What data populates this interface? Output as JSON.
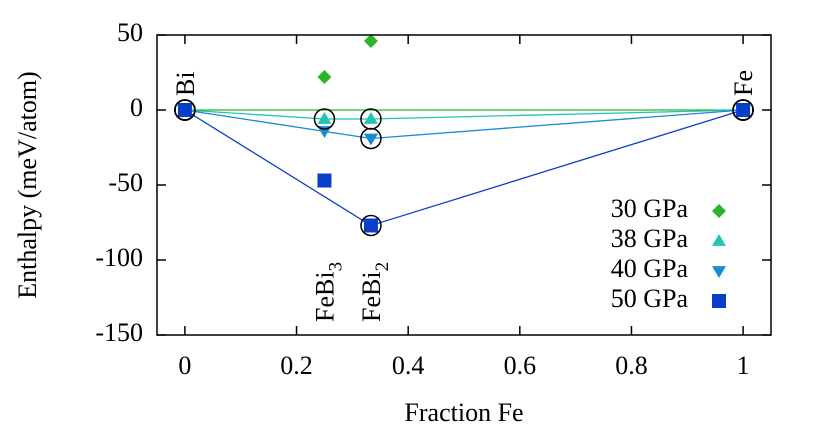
{
  "chart_data": {
    "type": "scatter",
    "xlabel": "Fraction Fe",
    "ylabel": "Enthalpy (meV/atom)",
    "xlim": [
      -0.05,
      1.05
    ],
    "ylim": [
      -150,
      50
    ],
    "xticks": [
      0,
      0.2,
      0.4,
      0.6,
      0.8,
      1
    ],
    "yticks": [
      -150,
      -100,
      -50,
      0,
      50
    ],
    "legend": "lower right",
    "series": [
      {
        "name": "30 GPa",
        "color": "#2cb52c",
        "marker": "diamond",
        "x": [
          0,
          0.25,
          0.3333,
          1
        ],
        "values": [
          0,
          22,
          46,
          0
        ],
        "hull": [
          0,
          3
        ]
      },
      {
        "name": "38 GPa",
        "color": "#22c4b4",
        "marker": "triangle-up",
        "x": [
          0,
          0.25,
          0.3333,
          1
        ],
        "values": [
          0,
          -6,
          -6,
          0
        ],
        "hull": [
          0,
          1,
          2,
          3
        ]
      },
      {
        "name": "40 GPa",
        "color": "#1a8ad4",
        "marker": "triangle-down",
        "x": [
          0,
          0.25,
          0.3333,
          1
        ],
        "values": [
          0,
          -14,
          -19,
          0
        ],
        "hull": [
          0,
          2,
          3
        ]
      },
      {
        "name": "50 GPa",
        "color": "#0b3ec8",
        "marker": "square",
        "x": [
          0,
          0.25,
          0.3333,
          1
        ],
        "values": [
          0,
          -47,
          -77,
          0
        ],
        "hull": [
          0,
          2,
          3
        ]
      }
    ],
    "annotations": [
      {
        "text": "Bi",
        "x": 0
      },
      {
        "text": "Fe",
        "x": 1
      },
      {
        "text": "FeBi",
        "sub": "3",
        "x": 0.25
      },
      {
        "text": "FeBi",
        "sub": "2",
        "x": 0.3333
      }
    ]
  }
}
